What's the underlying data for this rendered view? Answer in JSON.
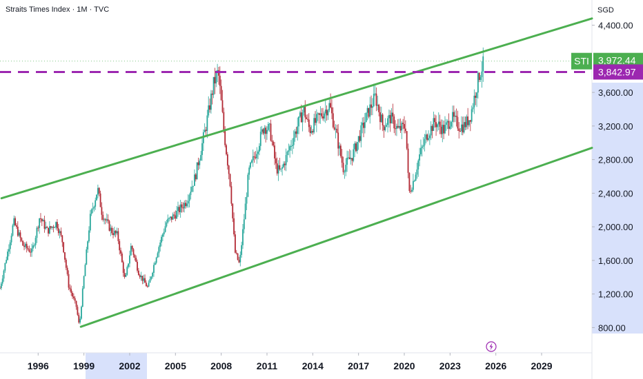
{
  "header": {
    "title": "Straits Times Index · 1M · TVC",
    "currency": "SGD"
  },
  "chart_data": {
    "type": "candlestick",
    "title": "Straits Times Index · 1M · TVC",
    "ylabel": "SGD",
    "ylim": [
      500,
      4700
    ],
    "xlim": [
      1993.5,
      2032.3
    ],
    "y_ticks": [
      "4,400.00",
      "3,600.00",
      "3,200.00",
      "2,800.00",
      "2,400.00",
      "2,000.00",
      "1,600.00",
      "1,200.00",
      "800.00"
    ],
    "x_ticks": [
      "1996",
      "1999",
      "2002",
      "2005",
      "2008",
      "2011",
      "2014",
      "2017",
      "2020",
      "2023",
      "2026",
      "2029"
    ],
    "highlighted_x_ticks": [
      "1999",
      "2002"
    ],
    "series_anchor_points": [
      [
        1993.5,
        1270
      ],
      [
        1994.0,
        1700
      ],
      [
        1994.4,
        2060
      ],
      [
        1995.0,
        1780
      ],
      [
        1995.6,
        1700
      ],
      [
        1996.1,
        2120
      ],
      [
        1996.6,
        1950
      ],
      [
        1997.2,
        2050
      ],
      [
        1997.6,
        1820
      ],
      [
        1998.0,
        1300
      ],
      [
        1998.5,
        1050
      ],
      [
        1998.7,
        810
      ],
      [
        1999.0,
        1400
      ],
      [
        1999.4,
        2100
      ],
      [
        1999.9,
        2450
      ],
      [
        2000.2,
        2150
      ],
      [
        2000.8,
        1950
      ],
      [
        2001.2,
        1900
      ],
      [
        2001.7,
        1350
      ],
      [
        2002.1,
        1780
      ],
      [
        2002.6,
        1450
      ],
      [
        2003.2,
        1270
      ],
      [
        2003.8,
        1700
      ],
      [
        2004.4,
        2050
      ],
      [
        2005.0,
        2150
      ],
      [
        2005.7,
        2300
      ],
      [
        2006.3,
        2600
      ],
      [
        2007.0,
        3200
      ],
      [
        2007.5,
        3700
      ],
      [
        2007.8,
        3850
      ],
      [
        2008.2,
        3100
      ],
      [
        2008.6,
        2500
      ],
      [
        2008.9,
        1700
      ],
      [
        2009.2,
        1550
      ],
      [
        2009.8,
        2650
      ],
      [
        2010.3,
        2900
      ],
      [
        2010.8,
        3200
      ],
      [
        2011.2,
        3150
      ],
      [
        2011.6,
        2700
      ],
      [
        2011.9,
        2650
      ],
      [
        2012.4,
        2900
      ],
      [
        2012.9,
        3150
      ],
      [
        2013.4,
        3400
      ],
      [
        2013.8,
        3150
      ],
      [
        2014.4,
        3300
      ],
      [
        2015.1,
        3450
      ],
      [
        2015.6,
        3050
      ],
      [
        2016.0,
        2700
      ],
      [
        2016.6,
        2850
      ],
      [
        2017.1,
        3100
      ],
      [
        2017.6,
        3350
      ],
      [
        2018.1,
        3550
      ],
      [
        2018.6,
        3200
      ],
      [
        2019.1,
        3300
      ],
      [
        2019.6,
        3150
      ],
      [
        2020.1,
        3200
      ],
      [
        2020.3,
        2400
      ],
      [
        2020.6,
        2550
      ],
      [
        2021.0,
        2850
      ],
      [
        2021.5,
        3100
      ],
      [
        2022.0,
        3250
      ],
      [
        2022.6,
        3150
      ],
      [
        2023.1,
        3300
      ],
      [
        2023.6,
        3200
      ],
      [
        2023.9,
        3200
      ],
      [
        2024.3,
        3300
      ],
      [
        2024.6,
        3550
      ],
      [
        2024.9,
        3800
      ],
      [
        2025.2,
        3950
      ]
    ],
    "channel": {
      "upper": [
        [
          1993.6,
          2340
        ],
        [
          2032.3,
          4480
        ]
      ],
      "lower": [
        [
          1998.8,
          810
        ],
        [
          2032.3,
          2940
        ]
      ],
      "color": "#4caf50"
    },
    "horizontal_level": {
      "value": 3842.97,
      "label": "3,842.97",
      "color": "#9c27b0",
      "style": "dashed"
    },
    "last_price": {
      "value": 3972.44,
      "label": "3,972.44",
      "symbol": "STI",
      "color": "#4caf50"
    },
    "up_color": "#26a69a",
    "down_color": "#b22833",
    "grid": false,
    "legend": "none"
  }
}
